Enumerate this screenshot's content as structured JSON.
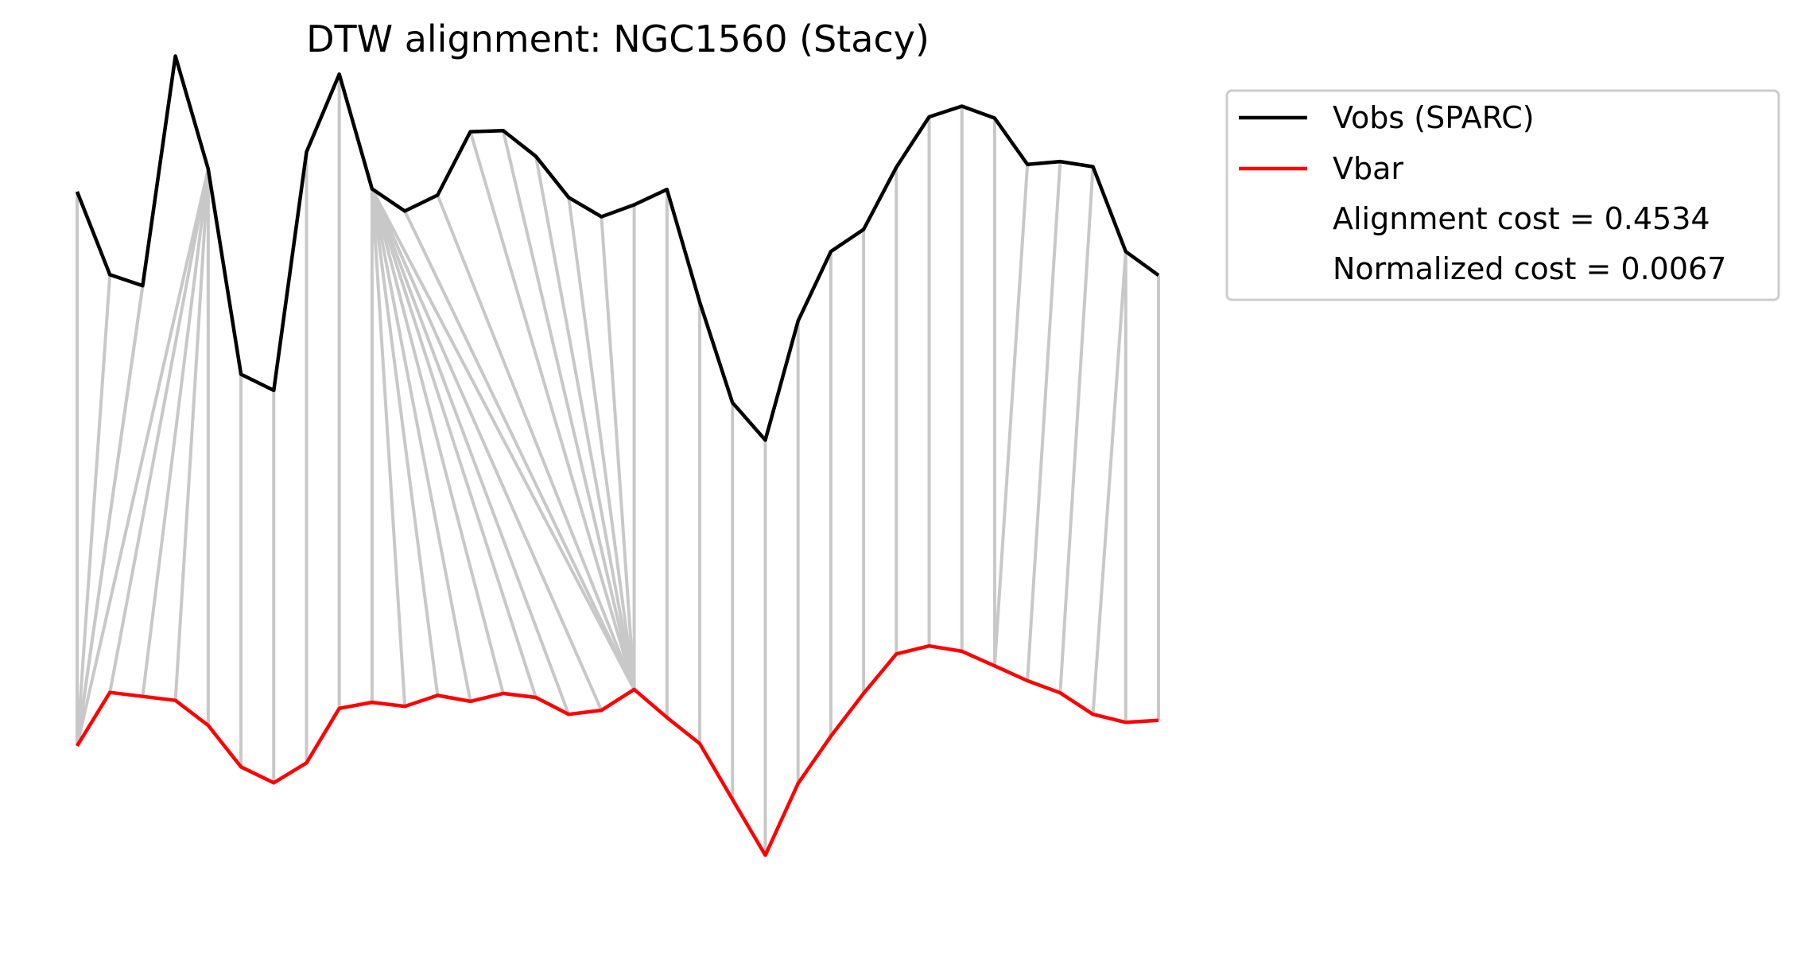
{
  "chart_data": {
    "type": "line",
    "title": "DTW alignment: NGC1560 (Stacy)",
    "axes_visible": false,
    "grid": false,
    "legend_position": "upper-right outside plot",
    "x": [
      0,
      1,
      2,
      3,
      4,
      5,
      6,
      7,
      8,
      9,
      10,
      11,
      12,
      13,
      14,
      15,
      16,
      17,
      18,
      19,
      20,
      21,
      22,
      23,
      24,
      25,
      26,
      27,
      28,
      29,
      30,
      31,
      32,
      33
    ],
    "series": [
      {
        "name": "Vobs (SPARC)",
        "color": "#000000",
        "values": [
          0.8324,
          0.7373,
          0.7247,
          0.9877,
          0.8585,
          0.6233,
          0.6048,
          0.878,
          0.9669,
          0.8356,
          0.8102,
          0.8284,
          0.9011,
          0.9024,
          0.8728,
          0.8258,
          0.8037,
          0.8174,
          0.835,
          0.706,
          0.5908,
          0.5479,
          0.6843,
          0.7638,
          0.7892,
          0.8604,
          0.918,
          0.9303,
          0.9167,
          0.8636,
          0.8669,
          0.861,
          0.7638,
          0.7366
        ]
      },
      {
        "name": "Vbar",
        "color": "#ff0000",
        "values": [
          0.1977,
          0.2589,
          0.2544,
          0.2498,
          0.2212,
          0.1737,
          0.1555,
          0.1782,
          0.2407,
          0.2476,
          0.243,
          0.2556,
          0.2487,
          0.2578,
          0.2532,
          0.2339,
          0.2385,
          0.2624,
          0.2302,
          0.2004,
          0.1364,
          0.0725,
          0.1546,
          0.2087,
          0.2578,
          0.303,
          0.3122,
          0.3061,
          0.2893,
          0.2723,
          0.2585,
          0.2339,
          0.2247,
          0.227
        ]
      }
    ],
    "alignment_pairs": [
      [
        0,
        0
      ],
      [
        1,
        0
      ],
      [
        2,
        0
      ],
      [
        3,
        0
      ],
      [
        4,
        0
      ],
      [
        4,
        1
      ],
      [
        4,
        2
      ],
      [
        4,
        3
      ],
      [
        4,
        4
      ],
      [
        5,
        5
      ],
      [
        6,
        6
      ],
      [
        7,
        7
      ],
      [
        8,
        8
      ],
      [
        9,
        9
      ],
      [
        9,
        10
      ],
      [
        9,
        11
      ],
      [
        9,
        12
      ],
      [
        9,
        13
      ],
      [
        9,
        14
      ],
      [
        9,
        15
      ],
      [
        9,
        16
      ],
      [
        9,
        17
      ],
      [
        10,
        17
      ],
      [
        11,
        17
      ],
      [
        12,
        17
      ],
      [
        13,
        17
      ],
      [
        14,
        17
      ],
      [
        15,
        17
      ],
      [
        16,
        17
      ],
      [
        17,
        17
      ],
      [
        18,
        18
      ],
      [
        19,
        19
      ],
      [
        20,
        20
      ],
      [
        21,
        21
      ],
      [
        22,
        22
      ],
      [
        23,
        23
      ],
      [
        24,
        24
      ],
      [
        25,
        25
      ],
      [
        26,
        26
      ],
      [
        27,
        27
      ],
      [
        28,
        28
      ],
      [
        29,
        28
      ],
      [
        30,
        29
      ],
      [
        31,
        30
      ],
      [
        32,
        31
      ],
      [
        32,
        32
      ],
      [
        33,
        33
      ]
    ],
    "alignment_line_color": "#c8c8c8",
    "annotations": [
      "Alignment cost = 0.4534",
      "Normalized cost = 0.0067"
    ]
  }
}
